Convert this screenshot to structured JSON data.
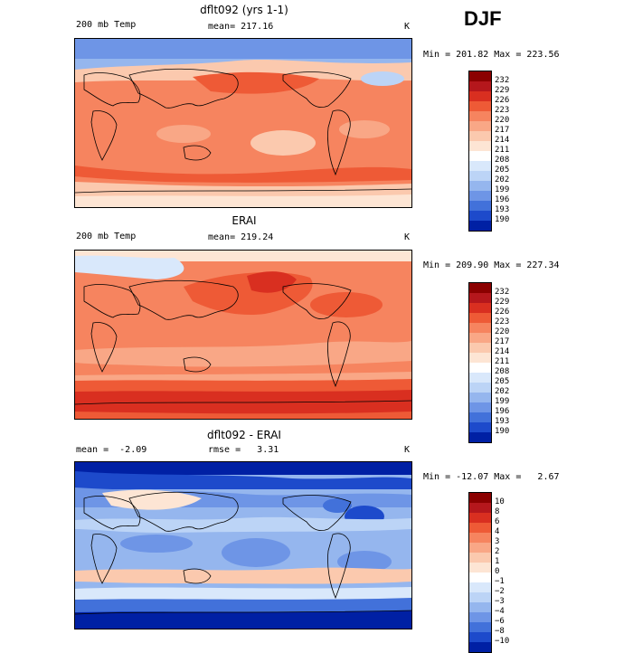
{
  "season": "DJF",
  "panels": [
    {
      "title": "dflt092 (yrs 1-1)",
      "left": "200 mb Temp",
      "center": "mean= 217.16",
      "units": "K",
      "minmax": "Min = 201.82 Max = 223.56",
      "levels": [
        "232",
        "229",
        "226",
        "223",
        "220",
        "217",
        "214",
        "211",
        "208",
        "205",
        "202",
        "199",
        "196",
        "193",
        "190"
      ],
      "colors": [
        "#8b0000",
        "#b5171c",
        "#d92f20",
        "#ee5a36",
        "#f6845f",
        "#f9a786",
        "#fbc9ae",
        "#fde5d4",
        "#ffffff",
        "#d9e8fb",
        "#bcd4f6",
        "#95b6ee",
        "#6e95e6",
        "#4271da",
        "#1d4acb",
        "#0020a4"
      ]
    },
    {
      "title": "ERAI",
      "left": "200 mb Temp",
      "center": "mean= 219.24",
      "units": "K",
      "minmax": "Min = 209.90 Max = 227.34",
      "levels": [
        "232",
        "229",
        "226",
        "223",
        "220",
        "217",
        "214",
        "211",
        "208",
        "205",
        "202",
        "199",
        "196",
        "193",
        "190"
      ],
      "colors": [
        "#8b0000",
        "#b5171c",
        "#d92f20",
        "#ee5a36",
        "#f6845f",
        "#f9a786",
        "#fbc9ae",
        "#fde5d4",
        "#ffffff",
        "#d9e8fb",
        "#bcd4f6",
        "#95b6ee",
        "#6e95e6",
        "#4271da",
        "#1d4acb",
        "#0020a4"
      ]
    },
    {
      "title": "dflt092 - ERAI",
      "left": "mean =  -2.09",
      "center": "rmse =   3.31",
      "units": "K",
      "minmax": "Min = -12.07 Max =   2.67",
      "levels": [
        "10",
        "8",
        "6",
        "4",
        "3",
        "2",
        "1",
        "0",
        "−1",
        "−2",
        "−3",
        "−4",
        "−6",
        "−8",
        "−10"
      ],
      "colors": [
        "#8b0000",
        "#b5171c",
        "#d92f20",
        "#ee5a36",
        "#f6845f",
        "#f9a786",
        "#fbc9ae",
        "#fde5d4",
        "#ffffff",
        "#d9e8fb",
        "#bcd4f6",
        "#95b6ee",
        "#6e95e6",
        "#4271da",
        "#1d4acb",
        "#0020a4"
      ]
    }
  ]
}
